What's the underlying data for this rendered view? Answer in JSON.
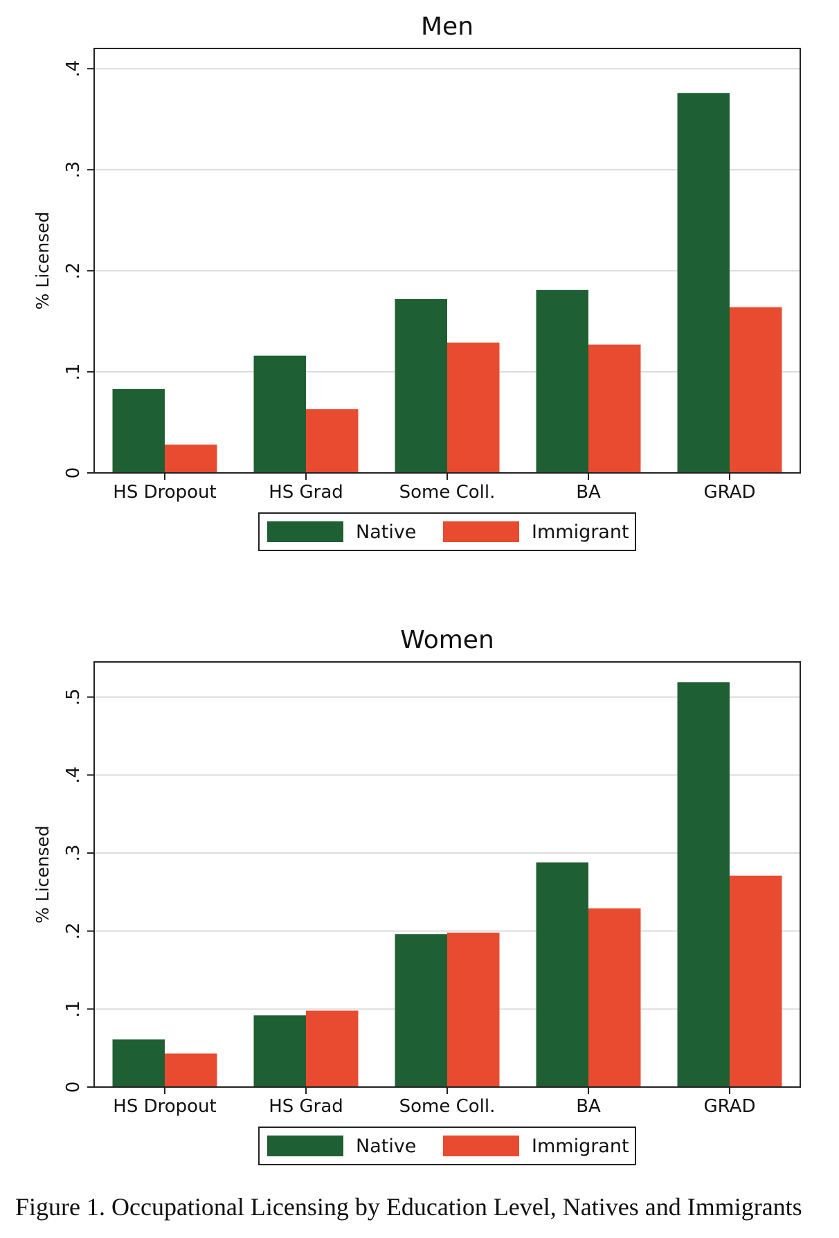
{
  "caption": "Figure 1. Occupational Licensing by Education Level, Natives and Immigrants",
  "chart_data": [
    {
      "type": "bar",
      "title": "Men",
      "xlabel": "",
      "ylabel": "% Licensed",
      "categories": [
        "HS Dropout",
        "HS Grad",
        "Some Coll.",
        "BA",
        "GRAD"
      ],
      "series": [
        {
          "name": "Native",
          "color": "#1f5f34",
          "values": [
            0.083,
            0.116,
            0.172,
            0.181,
            0.376
          ]
        },
        {
          "name": "Immigrant",
          "color": "#e84b30",
          "values": [
            0.028,
            0.063,
            0.129,
            0.127,
            0.164
          ]
        }
      ],
      "ylim": [
        0,
        0.42
      ],
      "yticks": [
        0,
        0.1,
        0.2,
        0.3,
        0.4
      ],
      "ytick_labels": [
        "0",
        ".1",
        ".2",
        ".3",
        ".4"
      ],
      "grid": true,
      "legend_position": "bottom"
    },
    {
      "type": "bar",
      "title": "Women",
      "xlabel": "",
      "ylabel": "% Licensed",
      "categories": [
        "HS Dropout",
        "HS Grad",
        "Some Coll.",
        "BA",
        "GRAD"
      ],
      "series": [
        {
          "name": "Native",
          "color": "#1f5f34",
          "values": [
            0.061,
            0.092,
            0.196,
            0.288,
            0.519
          ]
        },
        {
          "name": "Immigrant",
          "color": "#e84b30",
          "values": [
            0.043,
            0.098,
            0.198,
            0.229,
            0.271
          ]
        }
      ],
      "ylim": [
        0,
        0.545
      ],
      "yticks": [
        0,
        0.1,
        0.2,
        0.3,
        0.4,
        0.5
      ],
      "ytick_labels": [
        "0",
        ".1",
        ".2",
        ".3",
        ".4",
        ".5"
      ],
      "grid": true,
      "legend_position": "bottom"
    }
  ]
}
